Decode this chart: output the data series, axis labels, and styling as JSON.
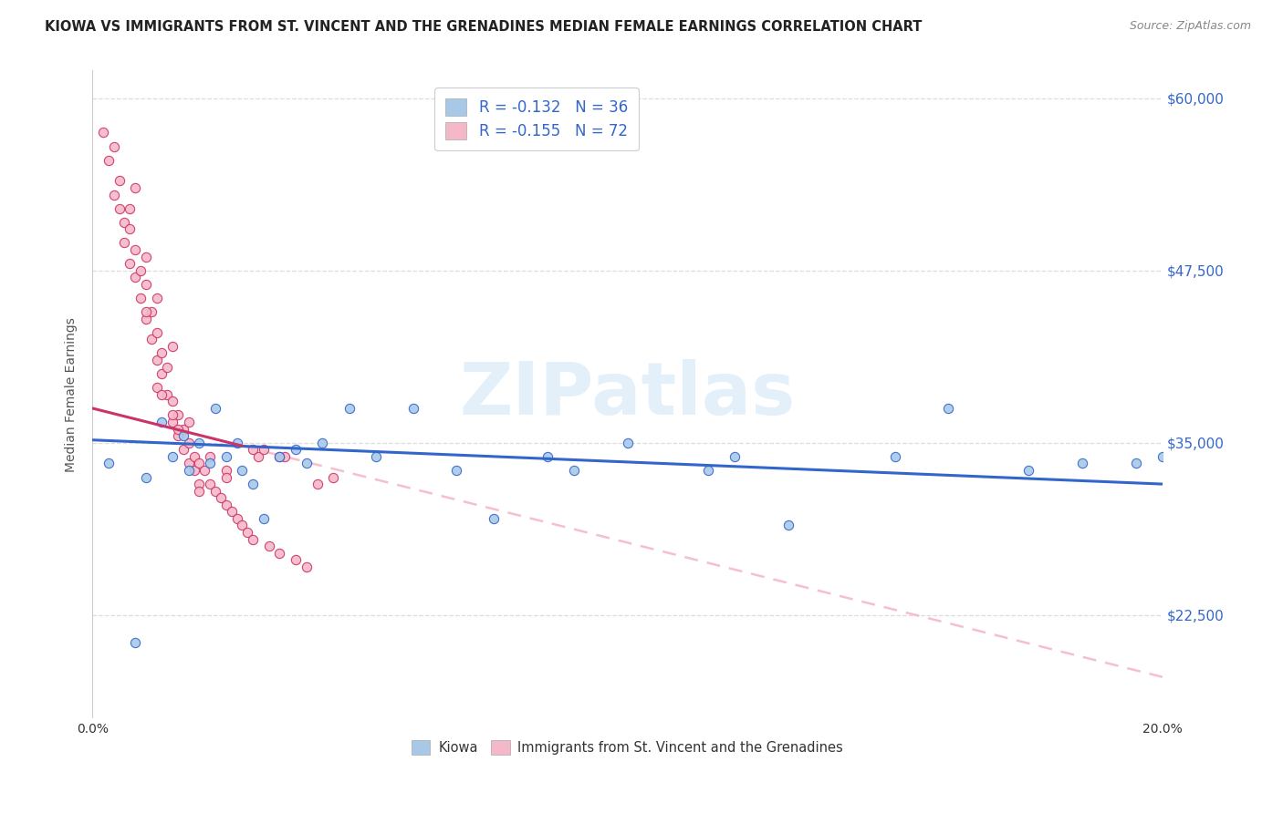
{
  "title": "KIOWA VS IMMIGRANTS FROM ST. VINCENT AND THE GRENADINES MEDIAN FEMALE EARNINGS CORRELATION CHART",
  "source": "Source: ZipAtlas.com",
  "ylabel": "Median Female Earnings",
  "xlim": [
    0.0,
    0.2
  ],
  "ylim": [
    15000,
    62000
  ],
  "yticks": [
    22500,
    35000,
    47500,
    60000
  ],
  "ytick_labels": [
    "$22,500",
    "$35,000",
    "$47,500",
    "$60,000"
  ],
  "xticks": [
    0.0,
    0.04,
    0.08,
    0.12,
    0.16,
    0.2
  ],
  "xtick_labels": [
    "0.0%",
    "",
    "",
    "",
    "",
    "20.0%"
  ],
  "legend_r_blue": "-0.132",
  "legend_n_blue": "36",
  "legend_r_pink": "-0.155",
  "legend_n_pink": "72",
  "blue_scatter_color": "#a8c8e8",
  "pink_scatter_color": "#f4b8c8",
  "blue_line_color": "#3366cc",
  "pink_line_color": "#cc3366",
  "pink_dash_color": "#f4b8c8",
  "watermark": "ZIPatlas",
  "tick_label_color_right": "#3366cc",
  "kiowa_x": [
    0.003,
    0.008,
    0.01,
    0.013,
    0.015,
    0.017,
    0.018,
    0.02,
    0.022,
    0.023,
    0.025,
    0.027,
    0.028,
    0.03,
    0.032,
    0.035,
    0.038,
    0.04,
    0.043,
    0.048,
    0.053,
    0.06,
    0.068,
    0.075,
    0.085,
    0.09,
    0.1,
    0.115,
    0.13,
    0.15,
    0.16,
    0.175,
    0.185,
    0.195,
    0.12,
    0.2
  ],
  "kiowa_y": [
    33500,
    20500,
    32500,
    36500,
    34000,
    35500,
    33000,
    35000,
    33500,
    37500,
    34000,
    35000,
    33000,
    32000,
    29500,
    34000,
    34500,
    33500,
    35000,
    37500,
    34000,
    37500,
    33000,
    29500,
    34000,
    33000,
    35000,
    33000,
    29000,
    34000,
    37500,
    33000,
    33500,
    33500,
    34000,
    34000
  ],
  "svg_x": [
    0.002,
    0.003,
    0.004,
    0.004,
    0.005,
    0.005,
    0.006,
    0.006,
    0.007,
    0.007,
    0.007,
    0.008,
    0.008,
    0.008,
    0.009,
    0.009,
    0.01,
    0.01,
    0.01,
    0.011,
    0.011,
    0.012,
    0.012,
    0.012,
    0.013,
    0.013,
    0.014,
    0.014,
    0.015,
    0.015,
    0.015,
    0.016,
    0.016,
    0.017,
    0.017,
    0.018,
    0.018,
    0.019,
    0.019,
    0.02,
    0.02,
    0.021,
    0.022,
    0.022,
    0.023,
    0.024,
    0.025,
    0.025,
    0.026,
    0.027,
    0.028,
    0.029,
    0.03,
    0.031,
    0.032,
    0.033,
    0.035,
    0.036,
    0.038,
    0.04,
    0.042,
    0.045,
    0.012,
    0.015,
    0.018,
    0.02,
    0.025,
    0.03,
    0.035,
    0.01,
    0.013,
    0.016
  ],
  "svg_y": [
    57500,
    55500,
    56500,
    53000,
    52000,
    54000,
    51000,
    49500,
    50500,
    48000,
    52000,
    49000,
    47000,
    53500,
    47500,
    45500,
    46500,
    44000,
    48500,
    44500,
    42500,
    43000,
    41000,
    45500,
    41500,
    40000,
    40500,
    38500,
    38000,
    36500,
    42000,
    37000,
    35500,
    36000,
    34500,
    35000,
    33500,
    34000,
    33000,
    33500,
    32000,
    33000,
    32000,
    34000,
    31500,
    31000,
    30500,
    33000,
    30000,
    29500,
    29000,
    28500,
    28000,
    34000,
    34500,
    27500,
    27000,
    34000,
    26500,
    26000,
    32000,
    32500,
    39000,
    37000,
    36500,
    31500,
    32500,
    34500,
    34000,
    44500,
    38500,
    36000
  ]
}
